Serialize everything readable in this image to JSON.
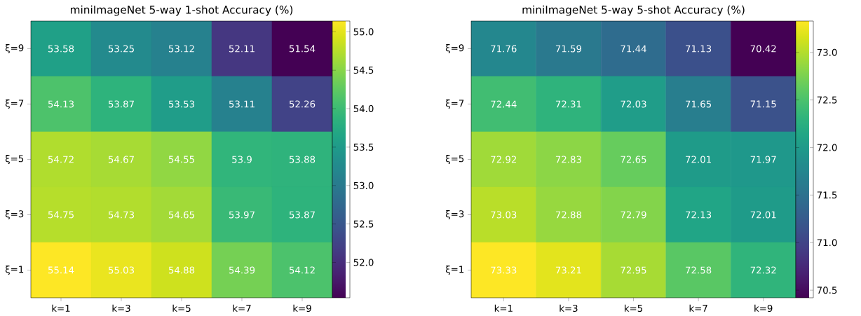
{
  "chart_data": [
    {
      "type": "heatmap",
      "title": "miniImageNet 5-way 1-shot Accuracy (%)",
      "categories": [
        "k=1",
        "k=3",
        "k=5",
        "k=7",
        "k=9"
      ],
      "y_categories": [
        "ξ=9",
        "ξ=7",
        "ξ=5",
        "ξ=3",
        "ξ=1"
      ],
      "cells": [
        [
          53.58,
          53.25,
          53.12,
          52.11,
          51.54
        ],
        [
          54.13,
          53.87,
          53.53,
          53.11,
          52.26
        ],
        [
          54.72,
          54.67,
          54.55,
          53.9,
          53.88
        ],
        [
          54.75,
          54.73,
          54.65,
          53.97,
          53.87
        ],
        [
          55.14,
          55.03,
          54.88,
          54.39,
          54.12
        ]
      ],
      "clim": [
        51.54,
        55.14
      ],
      "cticks": [
        {
          "value": 52,
          "label": "52.0"
        },
        {
          "value": 52.5,
          "label": "52.5"
        },
        {
          "value": 53,
          "label": "53.0"
        },
        {
          "value": 53.5,
          "label": "53.5"
        },
        {
          "value": 54,
          "label": "54.0"
        },
        {
          "value": 54.5,
          "label": "54.5"
        },
        {
          "value": 55,
          "label": "55.0"
        }
      ],
      "data_labels": true
    },
    {
      "type": "heatmap",
      "title": "miniImageNet 5-way 5-shot Accuracy (%)",
      "categories": [
        "k=1",
        "k=3",
        "k=5",
        "k=7",
        "k=9"
      ],
      "y_categories": [
        "ξ=9",
        "ξ=7",
        "ξ=5",
        "ξ=3",
        "ξ=1"
      ],
      "cells": [
        [
          71.76,
          71.59,
          71.44,
          71.13,
          70.42
        ],
        [
          72.44,
          72.31,
          72.03,
          71.65,
          71.15
        ],
        [
          72.92,
          72.83,
          72.65,
          72.01,
          71.97
        ],
        [
          73.03,
          72.88,
          72.79,
          72.13,
          72.01
        ],
        [
          73.33,
          73.21,
          72.95,
          72.58,
          72.32
        ]
      ],
      "clim": [
        70.42,
        73.33
      ],
      "cticks": [
        {
          "value": 70.5,
          "label": "70.5"
        },
        {
          "value": 71,
          "label": "71.0"
        },
        {
          "value": 71.5,
          "label": "71.5"
        },
        {
          "value": 72,
          "label": "72.0"
        },
        {
          "value": 72.5,
          "label": "72.5"
        },
        {
          "value": 73,
          "label": "73.0"
        }
      ],
      "data_labels": true
    }
  ]
}
